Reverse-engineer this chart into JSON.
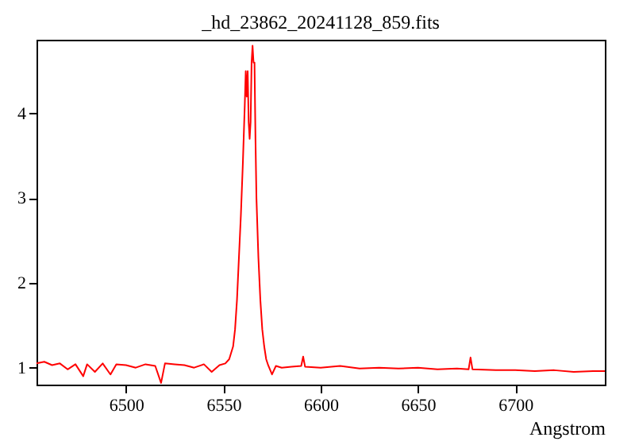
{
  "chart_data": {
    "type": "line",
    "title": "_hd_23862_20241128_859.fits",
    "xlabel": "Angstrom",
    "x": [
      6454,
      6458,
      6462,
      6466,
      6470,
      6474,
      6478,
      6480,
      6484,
      6488,
      6492,
      6495,
      6500,
      6505,
      6510,
      6515,
      6518,
      6520,
      6525,
      6530,
      6535,
      6540,
      6544,
      6548,
      6551,
      6553,
      6555,
      6556,
      6557,
      6558,
      6559,
      6560,
      6561,
      6561.5,
      6562,
      6562.5,
      6563,
      6563.5,
      6564,
      6564.5,
      6565,
      6565.5,
      6566,
      6566.5,
      6567,
      6568,
      6569,
      6570,
      6571,
      6572,
      6573,
      6575,
      6577,
      6580,
      6585,
      6590,
      6591,
      6592,
      6600,
      6610,
      6620,
      6630,
      6640,
      6650,
      6660,
      6670,
      6676,
      6677,
      6678,
      6690,
      6700,
      6710,
      6720,
      6730,
      6740,
      6746
    ],
    "series": [
      {
        "color": "#ff0000",
        "values": [
          1.05,
          1.07,
          1.03,
          1.05,
          0.98,
          1.04,
          0.9,
          1.04,
          0.95,
          1.05,
          0.92,
          1.04,
          1.03,
          1.0,
          1.04,
          1.02,
          0.82,
          1.05,
          1.04,
          1.03,
          1.0,
          1.04,
          0.95,
          1.03,
          1.05,
          1.1,
          1.25,
          1.45,
          1.8,
          2.3,
          2.8,
          3.4,
          4.1,
          4.5,
          4.2,
          4.5,
          3.9,
          3.7,
          3.9,
          4.6,
          4.8,
          4.6,
          4.6,
          3.7,
          3.0,
          2.3,
          1.8,
          1.45,
          1.25,
          1.1,
          1.03,
          0.92,
          1.02,
          1.0,
          1.01,
          1.02,
          1.13,
          1.01,
          1.0,
          1.02,
          0.99,
          1.0,
          0.99,
          1.0,
          0.98,
          0.99,
          0.98,
          1.12,
          0.98,
          0.97,
          0.97,
          0.96,
          0.97,
          0.95,
          0.96,
          0.96
        ]
      }
    ],
    "xlim": [
      6454,
      6746
    ],
    "xticks": [
      6500,
      6550,
      6600,
      6650,
      6700
    ],
    "ylim": [
      0.8,
      4.87
    ],
    "yticks": [
      1,
      2,
      3,
      4
    ],
    "grid": false,
    "legend": false,
    "marker": "none",
    "line_style": "solid"
  }
}
